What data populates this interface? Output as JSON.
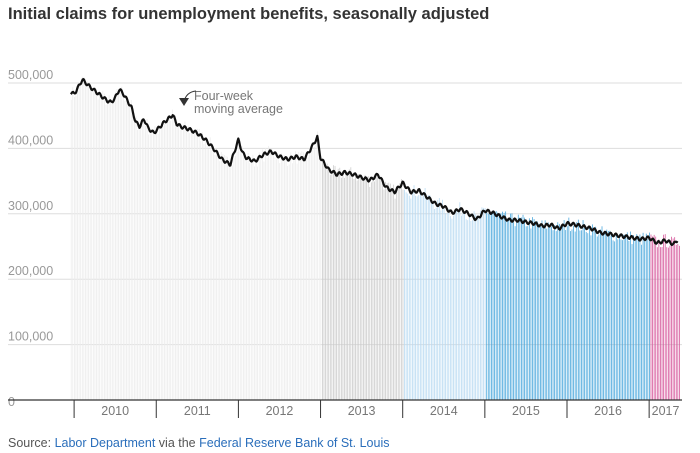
{
  "title": "Initial claims for unemployment benefits, seasonally adjusted",
  "source": {
    "prefix": "Source: ",
    "link1": "Labor Department",
    "middle": " via the ",
    "link2": "Federal Reserve Bank of St. Louis"
  },
  "annotation": {
    "line1": "Four-week",
    "line2": "moving average"
  },
  "chart_data": {
    "type": "bar",
    "title": "Initial claims for unemployment benefits, seasonally adjusted",
    "ylim": [
      0,
      500000
    ],
    "yticks": [
      0,
      100000,
      200000,
      300000,
      400000,
      500000
    ],
    "ytick_labels": [
      "0",
      "100,000",
      "200,000",
      "300,000",
      "400,000",
      "500,000"
    ],
    "xlim": [
      2009.95,
      2017.4
    ],
    "xtick_labels": [
      "2010",
      "2011",
      "2012",
      "2013",
      "2014",
      "2015",
      "2016",
      "2017"
    ],
    "grid": true,
    "year_colors": {
      "2010": "#ececec",
      "2011": "#ececec",
      "2012": "#ececec",
      "2013": "#cccccc",
      "2014": "#b9daf2",
      "2015": "#4aa7dc",
      "2016": "#4aa7dc",
      "2017": "#d6579b"
    },
    "moving_average_color": "#111111",
    "series": [
      {
        "name": "Four-week moving average",
        "type": "line",
        "x": [
          2009.96,
          2010.0,
          2010.05,
          2010.1,
          2010.15,
          2010.2,
          2010.3,
          2010.4,
          2010.45,
          2010.5,
          2010.55,
          2010.6,
          2010.7,
          2010.75,
          2010.8,
          2010.85,
          2010.9,
          2010.97,
          2011.1,
          2011.2,
          2011.25,
          2011.3,
          2011.4,
          2011.5,
          2011.6,
          2011.7,
          2011.8,
          2011.9,
          2012.0,
          2012.05,
          2012.1,
          2012.2,
          2012.3,
          2012.4,
          2012.5,
          2012.6,
          2012.7,
          2012.8,
          2012.9,
          2012.96,
          2013.0,
          2013.1,
          2013.2,
          2013.3,
          2013.4,
          2013.5,
          2013.6,
          2013.7,
          2013.8,
          2013.9,
          2014.0,
          2014.1,
          2014.2,
          2014.3,
          2014.4,
          2014.5,
          2014.6,
          2014.7,
          2014.8,
          2014.9,
          2015.0,
          2015.1,
          2015.2,
          2015.3,
          2015.4,
          2015.5,
          2015.6,
          2015.7,
          2015.8,
          2015.9,
          2016.0,
          2016.1,
          2016.2,
          2016.3,
          2016.4,
          2016.5,
          2016.6,
          2016.7,
          2016.8,
          2016.9,
          2017.0,
          2017.1,
          2017.2,
          2017.3,
          2017.35
        ],
        "values": [
          470000,
          468000,
          478000,
          490000,
          484000,
          478000,
          468000,
          458000,
          455000,
          462000,
          475000,
          468000,
          447000,
          425000,
          418000,
          430000,
          416000,
          408000,
          425000,
          436000,
          422000,
          418000,
          414000,
          408000,
          398000,
          384000,
          368000,
          360000,
          398000,
          378000,
          370000,
          365000,
          375000,
          380000,
          372000,
          368000,
          372000,
          368000,
          388000,
          402000,
          370000,
          352000,
          345000,
          348000,
          345000,
          340000,
          336000,
          345000,
          325000,
          318000,
          332000,
          318000,
          320000,
          310000,
          300000,
          296000,
          286000,
          292000,
          285000,
          276000,
          290000,
          286000,
          280000,
          275000,
          275000,
          272000,
          270000,
          266000,
          268000,
          262000,
          270000,
          268000,
          265000,
          262000,
          256000,
          254000,
          252000,
          250000,
          248000,
          246000,
          248000,
          240000,
          244000,
          238000,
          246000
        ]
      }
    ]
  }
}
